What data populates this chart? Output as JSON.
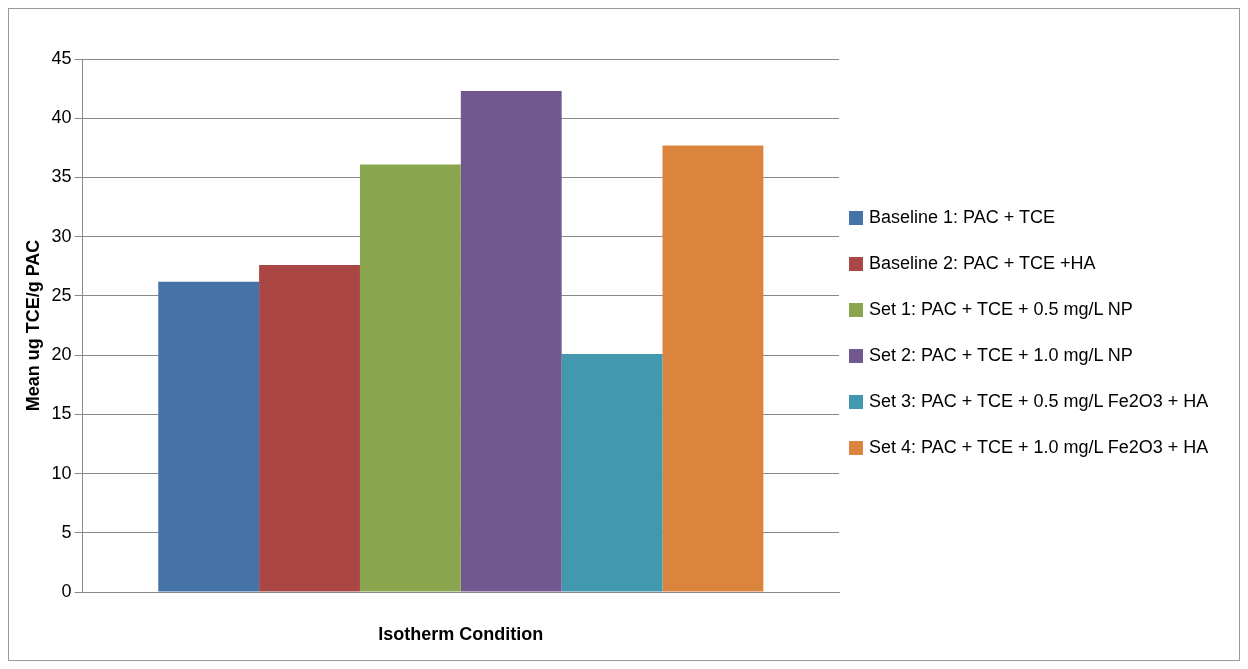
{
  "chart_data": {
    "type": "bar",
    "xlabel": "Isotherm Condition",
    "ylabel": "Mean ug TCE/g PAC",
    "categories": [
      null
    ],
    "series": [
      {
        "name": "Baseline 1:  PAC + TCE",
        "color": "#4572a7",
        "values": [
          26.2
        ]
      },
      {
        "name": "Baseline 2:  PAC + TCE +HA",
        "color": "#aa4643",
        "values": [
          27.6
        ]
      },
      {
        "name": "Set 1:  PAC + TCE + 0.5 mg/L NP",
        "color": "#89a54e",
        "values": [
          36.1
        ]
      },
      {
        "name": "Set 2:  PAC + TCE + 1.0 mg/L NP",
        "color": "#71588f",
        "values": [
          42.3
        ]
      },
      {
        "name": "Set 3:  PAC + TCE + 0.5 mg/L Fe2O3 + HA",
        "color": "#4198af",
        "values": [
          20.1
        ]
      },
      {
        "name": "Set 4:  PAC + TCE + 1.0 mg/L Fe2O3 + HA",
        "color": "#db843d",
        "values": [
          37.7
        ]
      }
    ],
    "ylim": [
      0,
      45
    ],
    "yticks": [
      0,
      5,
      10,
      15,
      20,
      25,
      30,
      35,
      40,
      45
    ],
    "grid": "y",
    "legend": "right"
  }
}
